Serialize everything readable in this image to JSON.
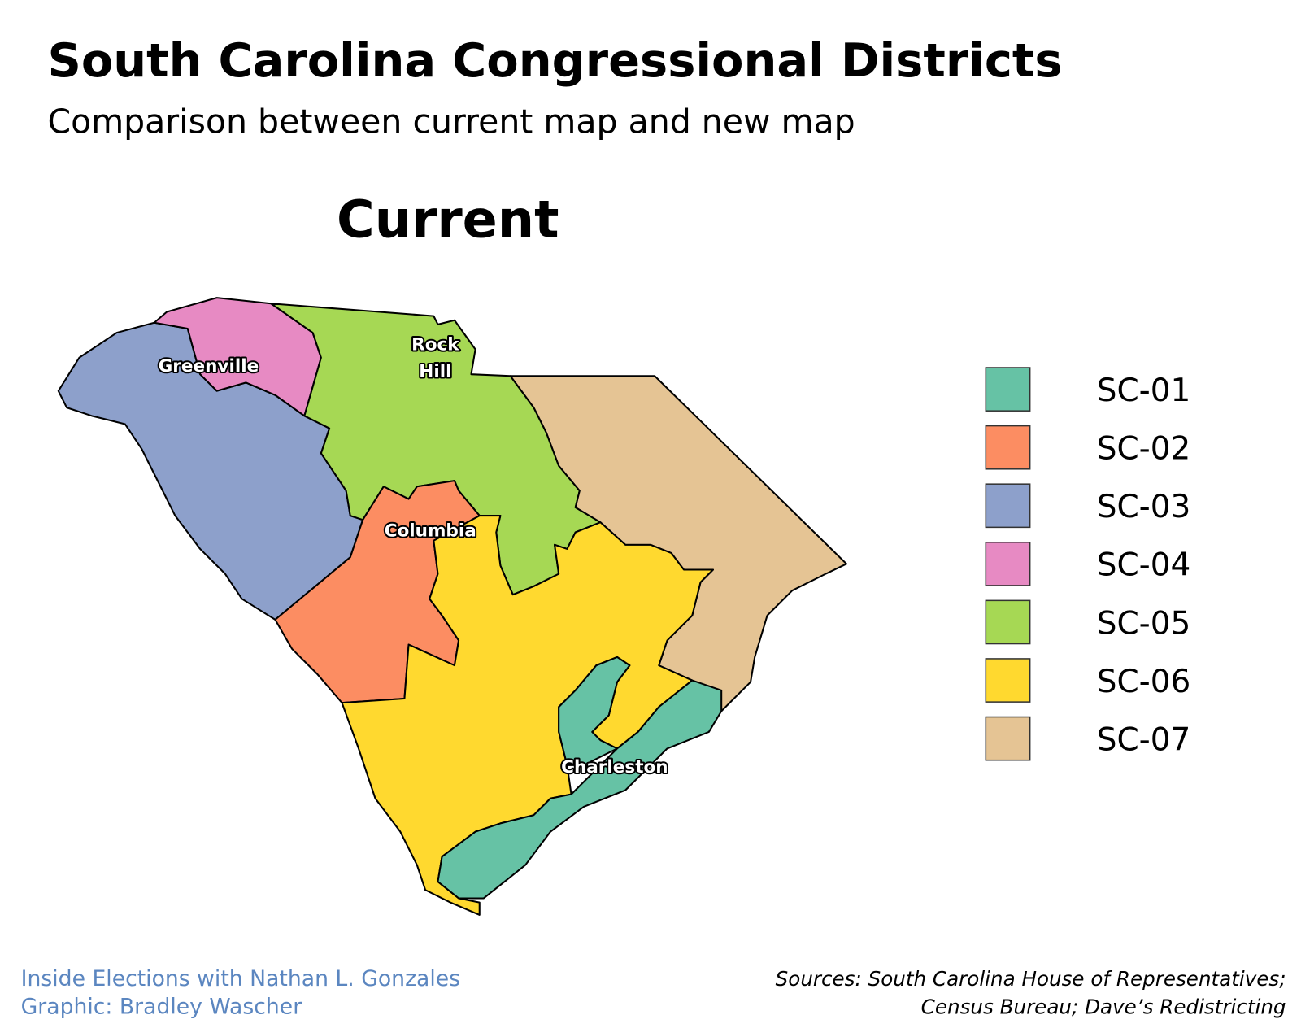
{
  "header": {
    "title": "South Carolina Congressional Districts",
    "subtitle": "Comparison between current map and new map"
  },
  "map": {
    "title": "Current",
    "cities": [
      {
        "lines": [
          "Greenville"
        ]
      },
      {
        "lines": [
          "Rock",
          "Hill"
        ]
      },
      {
        "lines": [
          "Columbia"
        ]
      },
      {
        "lines": [
          "Charleston"
        ]
      }
    ],
    "legend": [
      {
        "label": "SC-01",
        "color": "#66c2a5"
      },
      {
        "label": "SC-02",
        "color": "#fc8d62"
      },
      {
        "label": "SC-03",
        "color": "#8da0cb"
      },
      {
        "label": "SC-04",
        "color": "#e78ac3"
      },
      {
        "label": "SC-05",
        "color": "#a6d854"
      },
      {
        "label": "SC-06",
        "color": "#ffd92f"
      },
      {
        "label": "SC-07",
        "color": "#e5c494"
      }
    ]
  },
  "footer": {
    "credits": [
      "Inside Elections with Nathan L. Gonzales",
      "Graphic: Bradley Wascher"
    ],
    "sources": [
      "Sources: South Carolina House of Representatives;",
      "Census Bureau; Dave’s Redistricting"
    ]
  }
}
